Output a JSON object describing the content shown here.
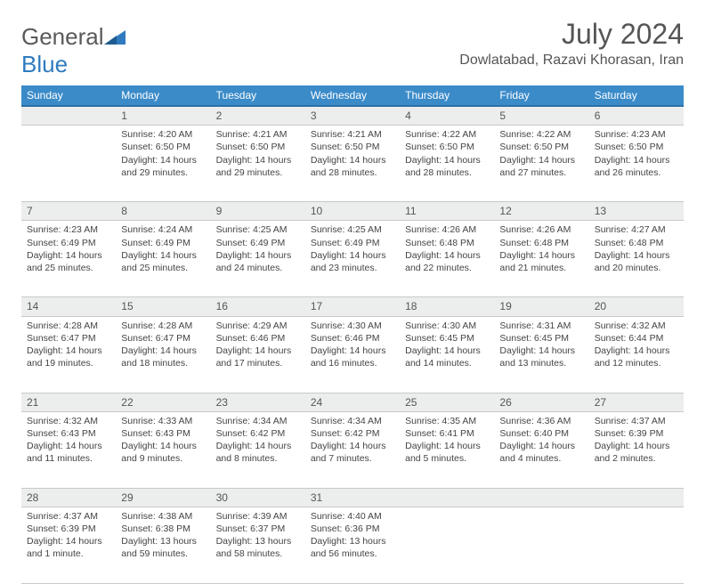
{
  "brand": {
    "part1": "General",
    "part2": "Blue"
  },
  "title": "July 2024",
  "location": "Dowlatabad, Razavi Khorasan, Iran",
  "colors": {
    "header_bg": "#3b8bc9",
    "header_border": "#2a6fa3",
    "daynum_bg": "#eceded",
    "cell_border": "#c9c9c9",
    "brand_blue": "#2f7bbf",
    "text": "#444"
  },
  "weekdays": [
    "Sunday",
    "Monday",
    "Tuesday",
    "Wednesday",
    "Thursday",
    "Friday",
    "Saturday"
  ],
  "weeks": [
    {
      "nums": [
        "",
        "1",
        "2",
        "3",
        "4",
        "5",
        "6"
      ],
      "cells": [
        "",
        "Sunrise: 4:20 AM\nSunset: 6:50 PM\nDaylight: 14 hours and 29 minutes.",
        "Sunrise: 4:21 AM\nSunset: 6:50 PM\nDaylight: 14 hours and 29 minutes.",
        "Sunrise: 4:21 AM\nSunset: 6:50 PM\nDaylight: 14 hours and 28 minutes.",
        "Sunrise: 4:22 AM\nSunset: 6:50 PM\nDaylight: 14 hours and 28 minutes.",
        "Sunrise: 4:22 AM\nSunset: 6:50 PM\nDaylight: 14 hours and 27 minutes.",
        "Sunrise: 4:23 AM\nSunset: 6:50 PM\nDaylight: 14 hours and 26 minutes."
      ]
    },
    {
      "nums": [
        "7",
        "8",
        "9",
        "10",
        "11",
        "12",
        "13"
      ],
      "cells": [
        "Sunrise: 4:23 AM\nSunset: 6:49 PM\nDaylight: 14 hours and 25 minutes.",
        "Sunrise: 4:24 AM\nSunset: 6:49 PM\nDaylight: 14 hours and 25 minutes.",
        "Sunrise: 4:25 AM\nSunset: 6:49 PM\nDaylight: 14 hours and 24 minutes.",
        "Sunrise: 4:25 AM\nSunset: 6:49 PM\nDaylight: 14 hours and 23 minutes.",
        "Sunrise: 4:26 AM\nSunset: 6:48 PM\nDaylight: 14 hours and 22 minutes.",
        "Sunrise: 4:26 AM\nSunset: 6:48 PM\nDaylight: 14 hours and 21 minutes.",
        "Sunrise: 4:27 AM\nSunset: 6:48 PM\nDaylight: 14 hours and 20 minutes."
      ]
    },
    {
      "nums": [
        "14",
        "15",
        "16",
        "17",
        "18",
        "19",
        "20"
      ],
      "cells": [
        "Sunrise: 4:28 AM\nSunset: 6:47 PM\nDaylight: 14 hours and 19 minutes.",
        "Sunrise: 4:28 AM\nSunset: 6:47 PM\nDaylight: 14 hours and 18 minutes.",
        "Sunrise: 4:29 AM\nSunset: 6:46 PM\nDaylight: 14 hours and 17 minutes.",
        "Sunrise: 4:30 AM\nSunset: 6:46 PM\nDaylight: 14 hours and 16 minutes.",
        "Sunrise: 4:30 AM\nSunset: 6:45 PM\nDaylight: 14 hours and 14 minutes.",
        "Sunrise: 4:31 AM\nSunset: 6:45 PM\nDaylight: 14 hours and 13 minutes.",
        "Sunrise: 4:32 AM\nSunset: 6:44 PM\nDaylight: 14 hours and 12 minutes."
      ]
    },
    {
      "nums": [
        "21",
        "22",
        "23",
        "24",
        "25",
        "26",
        "27"
      ],
      "cells": [
        "Sunrise: 4:32 AM\nSunset: 6:43 PM\nDaylight: 14 hours and 11 minutes.",
        "Sunrise: 4:33 AM\nSunset: 6:43 PM\nDaylight: 14 hours and 9 minutes.",
        "Sunrise: 4:34 AM\nSunset: 6:42 PM\nDaylight: 14 hours and 8 minutes.",
        "Sunrise: 4:34 AM\nSunset: 6:42 PM\nDaylight: 14 hours and 7 minutes.",
        "Sunrise: 4:35 AM\nSunset: 6:41 PM\nDaylight: 14 hours and 5 minutes.",
        "Sunrise: 4:36 AM\nSunset: 6:40 PM\nDaylight: 14 hours and 4 minutes.",
        "Sunrise: 4:37 AM\nSunset: 6:39 PM\nDaylight: 14 hours and 2 minutes."
      ]
    },
    {
      "nums": [
        "28",
        "29",
        "30",
        "31",
        "",
        "",
        ""
      ],
      "cells": [
        "Sunrise: 4:37 AM\nSunset: 6:39 PM\nDaylight: 14 hours and 1 minute.",
        "Sunrise: 4:38 AM\nSunset: 6:38 PM\nDaylight: 13 hours and 59 minutes.",
        "Sunrise: 4:39 AM\nSunset: 6:37 PM\nDaylight: 13 hours and 58 minutes.",
        "Sunrise: 4:40 AM\nSunset: 6:36 PM\nDaylight: 13 hours and 56 minutes.",
        "",
        "",
        ""
      ]
    }
  ]
}
